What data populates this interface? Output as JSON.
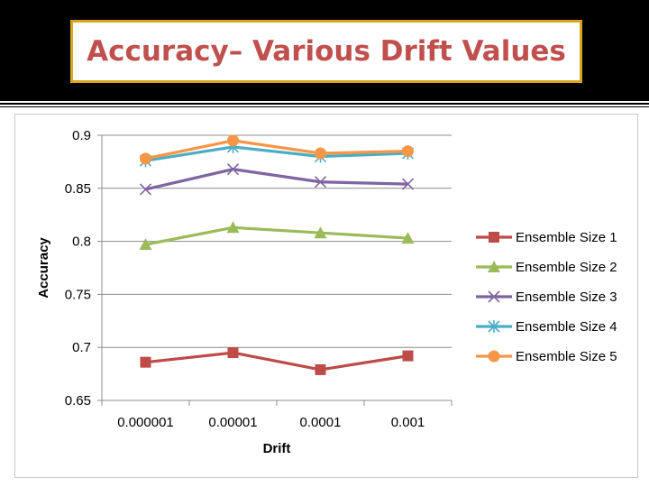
{
  "slide": {
    "title": "Accuracy– Various Drift Values"
  },
  "chart_data": {
    "type": "line",
    "categories": [
      "0.000001",
      "0.00001",
      "0.0001",
      "0.001"
    ],
    "xlabel": "Drift",
    "ylabel": "Accuracy",
    "ylim": [
      0.65,
      0.9
    ],
    "yticks": [
      "0.65",
      "0.7",
      "0.75",
      "0.8",
      "0.85",
      "0.9"
    ],
    "grid": true,
    "legend_position": "right",
    "series": [
      {
        "name": "Ensemble Size 1",
        "values": [
          0.686,
          0.695,
          0.679,
          0.692
        ],
        "color": "#be4b48",
        "marker": "square"
      },
      {
        "name": "Ensemble Size 2",
        "values": [
          0.797,
          0.813,
          0.808,
          0.803
        ],
        "color": "#9bbb59",
        "marker": "triangle"
      },
      {
        "name": "Ensemble Size 3",
        "values": [
          0.849,
          0.868,
          0.856,
          0.854
        ],
        "color": "#7f64a2",
        "marker": "x"
      },
      {
        "name": "Ensemble Size 4",
        "values": [
          0.876,
          0.889,
          0.88,
          0.883
        ],
        "color": "#4bacc6",
        "marker": "star"
      },
      {
        "name": "Ensemble Size 5",
        "values": [
          0.878,
          0.895,
          0.883,
          0.885
        ],
        "color": "#f79646",
        "marker": "circle"
      }
    ]
  }
}
